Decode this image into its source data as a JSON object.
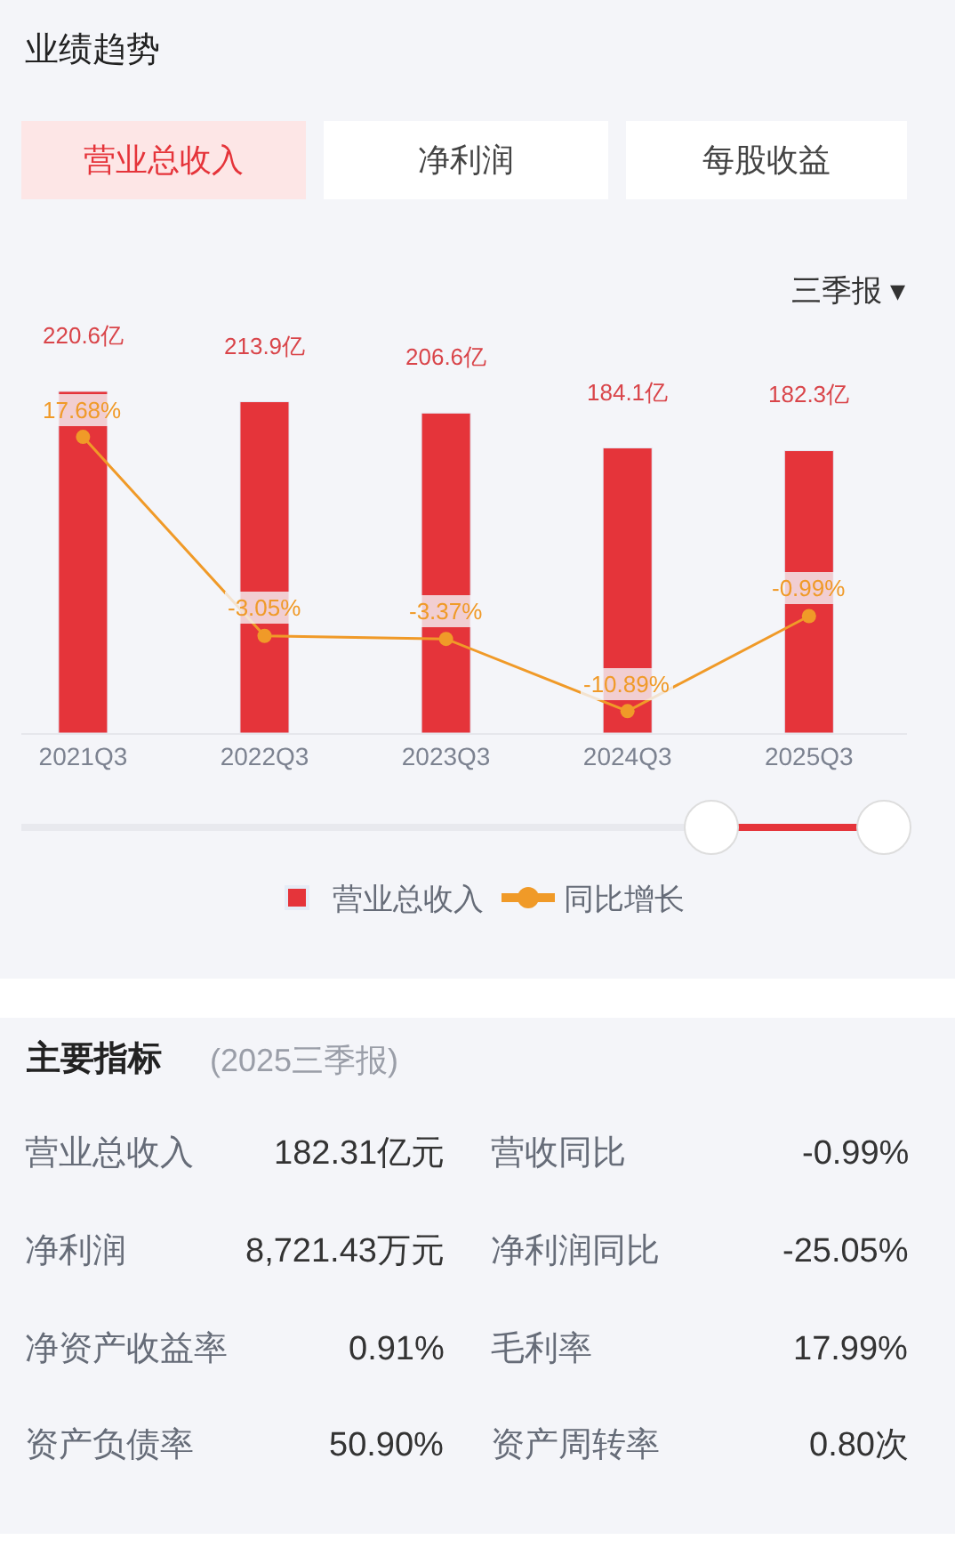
{
  "chart_data": [
    {
      "type": "bar",
      "title": "业绩趋势",
      "annotations": [
        "营业总收入",
        "净利润",
        "每股收益",
        "三季报 ▾"
      ],
      "categories": [
        "2021Q3",
        "2022Q3",
        "2023Q3",
        "2024Q3",
        "2025Q3"
      ],
      "series": [
        {
          "name": "营业总收入",
          "type": "bar",
          "color": "#e5343a",
          "values": [
            220.6,
            213.9,
            206.6,
            184.1,
            182.3
          ],
          "value_labels": [
            "220.6亿",
            "213.9亿",
            "206.6亿",
            "184.1亿",
            "182.3亿"
          ]
        },
        {
          "name": "同比增长",
          "type": "line",
          "axis": "y2",
          "color": "#f09a28",
          "values": [
            17.68,
            -3.05,
            -3.37,
            -10.89,
            -0.99
          ],
          "value_labels": [
            "17.68%",
            "-3.05%",
            "-3.37%",
            "-10.89%",
            "-0.99%"
          ]
        }
      ],
      "legend": "bottom",
      "grid": false,
      "marker": "circle",
      "tick_labels": "x"
    },
    {
      "type": "other",
      "title": "主要指标",
      "subtitle": "(2025三季报)",
      "annotations": [
        "营业总收入",
        "182.31亿元",
        "营收同比",
        "-0.99%",
        "净利润",
        "8,721.43万元",
        "净利润同比",
        "-25.05%",
        "净资产收益率",
        "0.91%",
        "毛利率",
        "17.99%",
        "资产负债率",
        "50.90%",
        "资产周转率",
        "0.80次"
      ]
    }
  ]
}
